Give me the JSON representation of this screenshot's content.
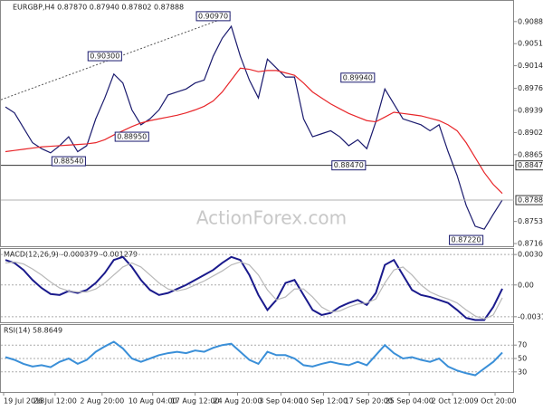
{
  "chart_data": {
    "type": "line",
    "title": "EURGBP,H4 0.87870 0.87940 0.87802 0.87888",
    "watermark": "ActionForex.com",
    "xlim": [
      -0.5,
      56.3
    ],
    "xticks": [
      {
        "value": -0.2,
        "label": "19 Jul 2018"
      },
      {
        "value": 5.5,
        "label": "26 Jul 12:00"
      },
      {
        "value": 10.7,
        "label": "2 Aug 20:00"
      },
      {
        "value": 16.3,
        "label": "10 Aug 04:00"
      },
      {
        "value": 21,
        "label": "17 Aug 12:00"
      },
      {
        "value": 25.7,
        "label": "24 Aug 20:00"
      },
      {
        "value": 30.5,
        "label": "3 Sep 04:00"
      },
      {
        "value": 35.2,
        "label": "10 Sep 12:00"
      },
      {
        "value": 40.2,
        "label": "17 Sep 20:00"
      },
      {
        "value": 44.7,
        "label": "25 Sep 04:00"
      },
      {
        "value": 49.5,
        "label": "2 Oct 12:00"
      },
      {
        "value": 54.2,
        "label": "9 Oct 20:00"
      }
    ],
    "ylim": [
      0.87115,
      0.91211
    ],
    "yticks": [
      {
        "value": 0.9088,
        "label": "0.90880"
      },
      {
        "value": 0.9051,
        "label": "0.90510"
      },
      {
        "value": 0.9014,
        "label": "0.90140"
      },
      {
        "value": 0.8976,
        "label": "0.89760"
      },
      {
        "value": 0.8939,
        "label": "0.89390"
      },
      {
        "value": 0.8902,
        "label": "0.89020"
      },
      {
        "value": 0.8865,
        "label": "0.88650"
      },
      {
        "value": 0.8753,
        "label": "0.87530"
      },
      {
        "value": 0.8716,
        "label": "0.87160"
      }
    ],
    "hlines": [
      {
        "value": 0.8847,
        "label": "0.88470",
        "color": "#333333"
      },
      {
        "value": 0.87888,
        "label": "0.87888",
        "color": "#b0b0b0"
      }
    ],
    "annotations": [
      {
        "x": 23,
        "value": 0.9097,
        "label": "0.90970"
      },
      {
        "x": 11,
        "value": 0.903,
        "label": "0.90300"
      },
      {
        "x": 14,
        "value": 0.8895,
        "label": "0.88950"
      },
      {
        "x": 7,
        "value": 0.8854,
        "label": "0.88540"
      },
      {
        "x": 39,
        "value": 0.8994,
        "label": "0.89940"
      },
      {
        "x": 38,
        "value": 0.8847,
        "label": "0.88470"
      },
      {
        "x": 51,
        "value": 0.8722,
        "label": "0.87220"
      }
    ],
    "trendline": {
      "x": [
        -0.5,
        25
      ],
      "y": [
        0.8957,
        0.9098
      ]
    },
    "series": [
      {
        "name": "EURGBP",
        "color": "#1a1a6e",
        "values": [
          0.8945,
          0.8935,
          0.891,
          0.8885,
          0.8875,
          0.8868,
          0.888,
          0.8895,
          0.887,
          0.888,
          0.8925,
          0.896,
          0.9,
          0.8985,
          0.894,
          0.8915,
          0.8925,
          0.894,
          0.8965,
          0.897,
          0.8975,
          0.8985,
          0.899,
          0.903,
          0.906,
          0.908,
          0.903,
          0.899,
          0.896,
          0.9025,
          0.901,
          0.8995,
          0.8995,
          0.8925,
          0.8895,
          0.89,
          0.8905,
          0.8895,
          0.888,
          0.889,
          0.8875,
          0.892,
          0.8975,
          0.895,
          0.8925,
          0.892,
          0.8915,
          0.8905,
          0.8915,
          0.887,
          0.883,
          0.878,
          0.8745,
          0.874,
          0.8765,
          0.8789
        ]
      },
      {
        "name": "MA",
        "color": "#e8262a",
        "values": [
          0.887,
          0.8872,
          0.8874,
          0.8876,
          0.8878,
          0.8879,
          0.888,
          0.8881,
          0.8882,
          0.8883,
          0.8885,
          0.889,
          0.8898,
          0.8905,
          0.8912,
          0.8918,
          0.8922,
          0.8925,
          0.8928,
          0.8931,
          0.8935,
          0.894,
          0.8946,
          0.8955,
          0.897,
          0.899,
          0.901,
          0.9008,
          0.9004,
          0.9006,
          0.9006,
          0.9002,
          0.8998,
          0.8985,
          0.897,
          0.896,
          0.895,
          0.8942,
          0.8934,
          0.8928,
          0.8922,
          0.892,
          0.8928,
          0.8936,
          0.8934,
          0.8932,
          0.893,
          0.8926,
          0.8922,
          0.8915,
          0.8905,
          0.8885,
          0.886,
          0.8835,
          0.8815,
          0.88
        ]
      }
    ],
    "macd": {
      "title": "MACD(12,26,9) -0.000379 -0.001279",
      "ylim": [
        -0.00373,
        0.0036
      ],
      "yticks": [
        0.003042,
        {
          "value": 0,
          "label": "0.00"
        },
        -0.003174
      ],
      "series": [
        {
          "name": "MACD",
          "color": "#1a1a8c",
          "values": [
            0.0025,
            0.0022,
            0.0015,
            0.0005,
            -0.0003,
            -0.0009,
            -0.001,
            -0.0006,
            -0.0008,
            -0.0005,
            0.0002,
            0.0012,
            0.0025,
            0.0028,
            0.0018,
            0.0005,
            -0.0005,
            -0.001,
            -0.0008,
            -0.0004,
            0,
            0.0005,
            0.001,
            0.0015,
            0.0022,
            0.0028,
            0.0025,
            0.001,
            -0.001,
            -0.0025,
            -0.0015,
            0.0002,
            0.0005,
            -0.001,
            -0.0025,
            -0.003,
            -0.0028,
            -0.0022,
            -0.0018,
            -0.0015,
            -0.002,
            -0.0008,
            0.002,
            0.0025,
            0.001,
            -0.0005,
            -0.001,
            -0.0012,
            -0.0015,
            -0.0018,
            -0.0025,
            -0.0033,
            -0.0035,
            -0.0035,
            -0.0022,
            -0.000379
          ]
        },
        {
          "name": "Signal",
          "color": "#b8b8b8",
          "values": [
            0.0022,
            0.0023,
            0.0021,
            0.0016,
            0.001,
            0.0003,
            -0.0003,
            -0.0006,
            -0.0007,
            -0.0007,
            -0.0004,
            0.0002,
            0.001,
            0.0018,
            0.0022,
            0.0018,
            0.001,
            0.0002,
            -0.0004,
            -0.0006,
            -0.0004,
            0,
            0.0004,
            0.0009,
            0.0014,
            0.002,
            0.0023,
            0.002,
            0.001,
            -0.0005,
            -0.0015,
            -0.0012,
            -0.0004,
            -0.0004,
            -0.0012,
            -0.0022,
            -0.0027,
            -0.0026,
            -0.0022,
            -0.0019,
            -0.0018,
            -0.0014,
            0.0002,
            0.0015,
            0.0018,
            0.001,
            0,
            -0.0007,
            -0.0011,
            -0.0014,
            -0.0018,
            -0.0025,
            -0.0031,
            -0.0034,
            -0.003,
            -0.001279
          ]
        }
      ]
    },
    "rsi": {
      "title": "RSI(14) 58.8649",
      "ylim": [
        0,
        100
      ],
      "yticks": [
        70,
        50,
        30
      ],
      "series": [
        {
          "name": "RSI",
          "color": "#3a8fd8",
          "values": [
            52,
            48,
            42,
            38,
            40,
            37,
            45,
            50,
            42,
            48,
            60,
            68,
            75,
            65,
            50,
            45,
            50,
            55,
            58,
            60,
            58,
            62,
            60,
            66,
            70,
            72,
            60,
            48,
            42,
            60,
            55,
            55,
            50,
            40,
            38,
            42,
            45,
            42,
            40,
            45,
            40,
            55,
            70,
            58,
            50,
            52,
            48,
            45,
            50,
            38,
            32,
            28,
            25,
            35,
            45,
            58.8649
          ]
        }
      ]
    }
  }
}
